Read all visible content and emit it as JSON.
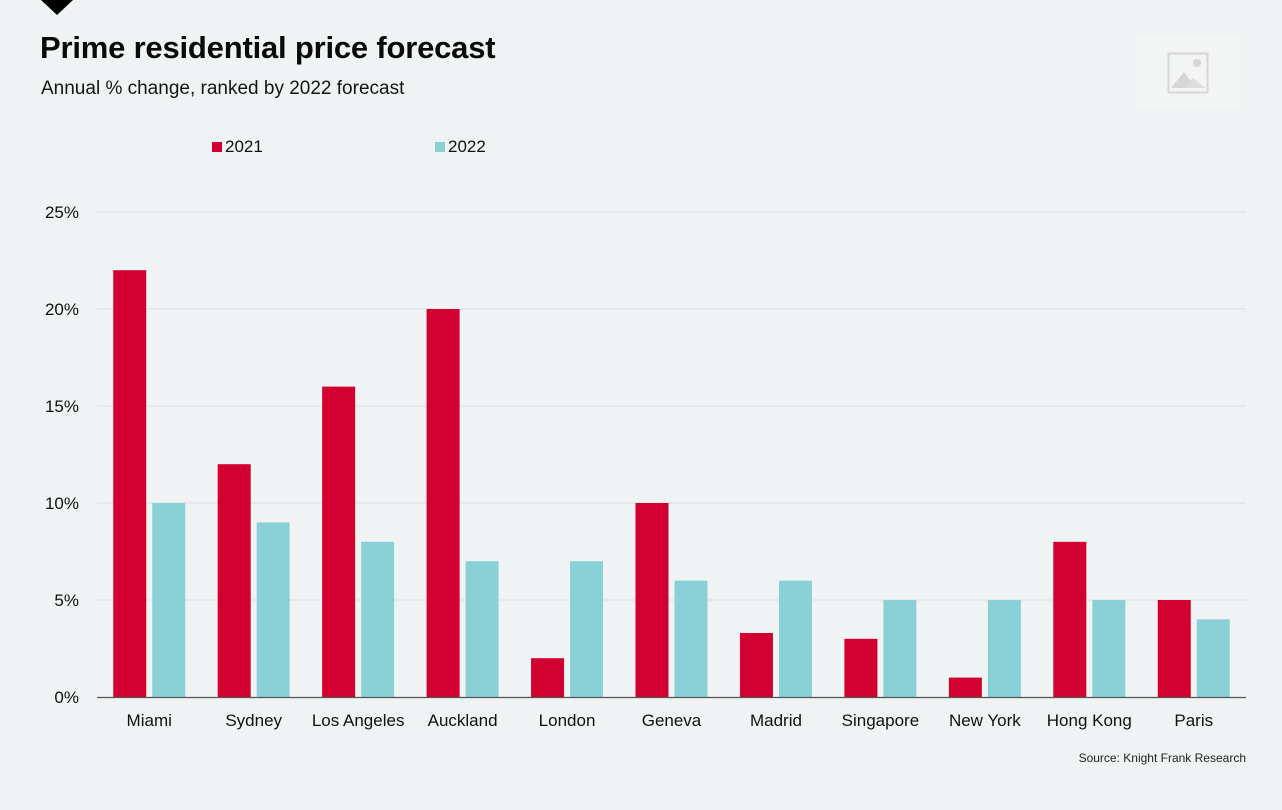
{
  "header": {
    "title": "Prime residential price forecast",
    "subtitle": "Annual % change, ranked by 2022 forecast"
  },
  "decor": {
    "top_marker_icon": "down-triangle-icon",
    "image_placeholder_icon": "image-placeholder-icon"
  },
  "source": "Source: Knight Frank Research",
  "colors": {
    "background": "#f0f3f3",
    "series_2021": "#d10031",
    "series_2022": "#89d1d7",
    "gridline": "#dcdfdf",
    "axis": "#555555"
  },
  "chart_data": {
    "type": "bar",
    "title": "Prime residential price forecast",
    "subtitle": "Annual % change, ranked by 2022 forecast",
    "xlabel": "",
    "ylabel": "",
    "ylim": [
      0,
      25
    ],
    "yticks": [
      0,
      5,
      10,
      15,
      20,
      25
    ],
    "ytick_labels": [
      "0%",
      "5%",
      "10%",
      "15%",
      "20%",
      "25%"
    ],
    "grid": true,
    "legend_position": "top-left",
    "categories": [
      "Miami",
      "Sydney",
      "Los Angeles",
      "Auckland",
      "London",
      "Geneva",
      "Madrid",
      "Singapore",
      "New York",
      "Hong Kong",
      "Paris"
    ],
    "series": [
      {
        "name": "2021",
        "color": "#d10031",
        "values": [
          22,
          12,
          16,
          20,
          2,
          10,
          3.3,
          3,
          1,
          8,
          5
        ]
      },
      {
        "name": "2022",
        "color": "#89d1d7",
        "values": [
          10,
          9,
          8,
          7,
          7,
          6,
          6,
          5,
          5,
          5,
          4
        ]
      }
    ],
    "source": "Source: Knight Frank Research"
  }
}
